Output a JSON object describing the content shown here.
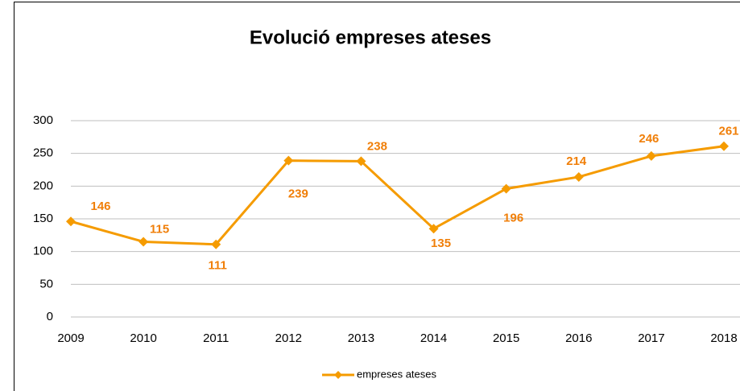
{
  "chart_data": {
    "type": "line",
    "title": "Evolució empreses ateses",
    "categories": [
      "2009",
      "2010",
      "2011",
      "2012",
      "2013",
      "2014",
      "2015",
      "2016",
      "2017",
      "2018"
    ],
    "series": [
      {
        "name": "empreses ateses",
        "color": "#f59b00",
        "values": [
          146,
          115,
          111,
          239,
          238,
          135,
          196,
          214,
          246,
          261
        ]
      }
    ],
    "ylim": [
      0,
      300
    ],
    "yticks": [
      0,
      50,
      100,
      150,
      200,
      250,
      300
    ],
    "grid": true,
    "legend": "bottom"
  }
}
